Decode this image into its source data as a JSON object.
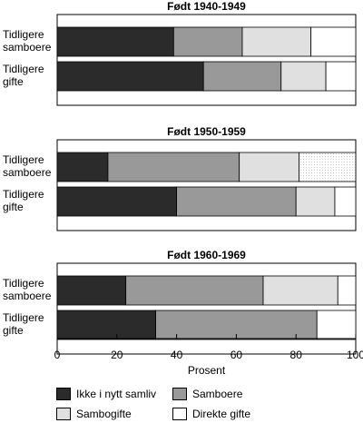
{
  "chart_data": {
    "type": "bar",
    "orientation": "horizontal",
    "stacked": true,
    "xlabel": "Prosent",
    "xlim": [
      0,
      100
    ],
    "xticks": [
      0,
      20,
      40,
      60,
      80,
      100
    ],
    "grid": false,
    "legend_position": "bottom",
    "series": [
      {
        "name": "Ikke i nytt samliv",
        "color": "#2b2b2b"
      },
      {
        "name": "Samboere",
        "color": "#999999"
      },
      {
        "name": "Sambogifte",
        "color": "#e0e0e0"
      },
      {
        "name": "Direkte gifte",
        "color": "#ffffff"
      }
    ],
    "panels": [
      {
        "title": "Født 1940-1949",
        "rows": [
          {
            "label": [
              "Tidligere",
              "samboere"
            ],
            "values": [
              39,
              23,
              23,
              15
            ]
          },
          {
            "label": [
              "Tidligere",
              "gifte"
            ],
            "values": [
              49,
              26,
              15,
              10
            ]
          }
        ]
      },
      {
        "title": "Født 1950-1959",
        "rows": [
          {
            "label": [
              "Tidligere",
              "samboere"
            ],
            "values": [
              17,
              44,
              20,
              19
            ]
          },
          {
            "label": [
              "Tidligere",
              "gifte"
            ],
            "values": [
              40,
              40,
              13,
              7
            ]
          }
        ]
      },
      {
        "title": "Født 1960-1969",
        "rows": [
          {
            "label": [
              "Tidligere",
              "samboere"
            ],
            "values": [
              23,
              46,
              25,
              6
            ]
          },
          {
            "label": [
              "Tidligere",
              "gifte"
            ],
            "values": [
              33,
              54,
              0,
              13
            ]
          }
        ]
      }
    ]
  }
}
